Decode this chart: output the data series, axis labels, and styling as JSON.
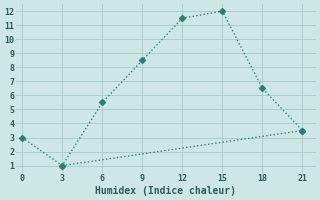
{
  "line1_x": [
    0,
    3,
    6,
    9,
    12,
    15,
    18,
    21
  ],
  "line1_y": [
    3,
    1,
    5.5,
    8.5,
    11.5,
    12,
    6.5,
    3.5
  ],
  "line2_x": [
    3,
    21
  ],
  "line2_y": [
    1,
    3.5
  ],
  "line_color": "#2e7d72",
  "bg_color": "#cde8e4",
  "grid_color": "#aaceca",
  "xlabel": "Humidex (Indice chaleur)",
  "xlim": [
    -0.5,
    22
  ],
  "ylim": [
    0.5,
    12.5
  ],
  "xticks": [
    0,
    3,
    6,
    9,
    12,
    15,
    18,
    21
  ],
  "yticks": [
    1,
    2,
    3,
    4,
    5,
    6,
    7,
    8,
    9,
    10,
    11,
    12
  ],
  "font_color": "#2e5c55",
  "marker": "D",
  "markersize": 3.0,
  "linewidth": 1.0
}
